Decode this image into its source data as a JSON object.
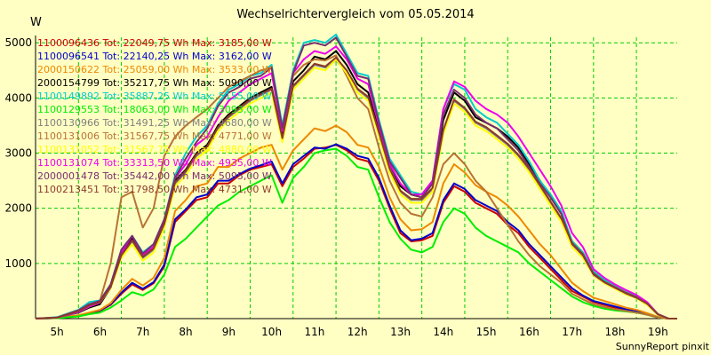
{
  "chart_data": {
    "type": "line",
    "title": "Wechselrichtervergleich vom 05.05.2014",
    "ylabel": "W",
    "xlabel": "",
    "ylim": [
      0,
      5100
    ],
    "yticks": [
      1000,
      2000,
      3000,
      4000,
      5000
    ],
    "xlim": [
      4.5,
      19.45
    ],
    "xticks": [
      "5h",
      "6h",
      "7h",
      "8h",
      "9h",
      "10h",
      "11h",
      "12h",
      "13h",
      "14h",
      "15h",
      "16h",
      "17h",
      "18h",
      "19h"
    ],
    "grid": true,
    "grid_color": "#00cc00",
    "plot_background": "#ffffc4",
    "legend_position": "top-left",
    "x": [
      4.5,
      5.0,
      5.5,
      5.75,
      6.0,
      6.25,
      6.5,
      6.75,
      7.0,
      7.25,
      7.5,
      7.75,
      8.0,
      8.25,
      8.5,
      8.75,
      9.0,
      9.25,
      9.5,
      9.75,
      10.0,
      10.25,
      10.5,
      10.75,
      11.0,
      11.25,
      11.5,
      11.75,
      12.0,
      12.25,
      12.5,
      12.75,
      13.0,
      13.25,
      13.5,
      13.75,
      14.0,
      14.25,
      14.5,
      14.75,
      15.0,
      15.25,
      15.5,
      15.75,
      16.0,
      16.25,
      16.5,
      16.75,
      17.0,
      17.25,
      17.5,
      17.75,
      18.0,
      18.25,
      18.5,
      18.75,
      19.0,
      19.25,
      19.45
    ],
    "series": [
      {
        "name": "1100096436 Tot: 22049,75 Wh Max: 3185,00 W",
        "color": "#cc0000",
        "values": [
          0,
          10,
          50,
          100,
          140,
          250,
          450,
          620,
          520,
          640,
          950,
          1750,
          1950,
          2150,
          2200,
          2450,
          2450,
          2600,
          2700,
          2750,
          2800,
          2400,
          2750,
          2900,
          3080,
          3100,
          3150,
          3050,
          2900,
          2850,
          2500,
          2000,
          1550,
          1400,
          1420,
          1500,
          2100,
          2400,
          2300,
          2100,
          2000,
          1900,
          1700,
          1550,
          1300,
          1100,
          900,
          700,
          500,
          400,
          300,
          250,
          200,
          160,
          130,
          80,
          20,
          0,
          0
        ]
      },
      {
        "name": "1100096541 Tot: 22140,25 Wh Max: 3162,00 W",
        "color": "#0000cc",
        "values": [
          0,
          10,
          55,
          105,
          150,
          260,
          470,
          650,
          540,
          660,
          980,
          1800,
          1980,
          2200,
          2250,
          2500,
          2500,
          2620,
          2720,
          2780,
          2850,
          2450,
          2800,
          2950,
          3100,
          3080,
          3160,
          3080,
          2950,
          2900,
          2550,
          2050,
          1600,
          1420,
          1450,
          1550,
          2150,
          2450,
          2350,
          2150,
          2050,
          1950,
          1750,
          1600,
          1350,
          1150,
          950,
          750,
          550,
          420,
          320,
          270,
          220,
          170,
          140,
          90,
          25,
          0,
          0
        ]
      },
      {
        "name": "2000150622 Tot: 25059,00 Wh Max: 3533,00 W",
        "color": "#ee8800",
        "values": [
          0,
          12,
          60,
          110,
          160,
          280,
          520,
          720,
          600,
          740,
          1100,
          1950,
          2150,
          2400,
          2450,
          2750,
          2750,
          2900,
          3000,
          3100,
          3150,
          2700,
          3050,
          3250,
          3450,
          3400,
          3500,
          3380,
          3150,
          3100,
          2750,
          2200,
          1800,
          1600,
          1620,
          1750,
          2450,
          2800,
          2650,
          2420,
          2300,
          2200,
          2050,
          1850,
          1600,
          1350,
          1150,
          900,
          650,
          500,
          380,
          320,
          260,
          200,
          160,
          100,
          30,
          0,
          0
        ]
      },
      {
        "name": "2000154799 Tot: 35217,75 Wh Max: 5090,00 W",
        "color": "#000000",
        "values": [
          0,
          20,
          110,
          200,
          260,
          560,
          1200,
          1450,
          1150,
          1300,
          1750,
          2500,
          2700,
          3000,
          3150,
          3500,
          3700,
          3850,
          4000,
          4100,
          4200,
          3300,
          4300,
          4500,
          4750,
          4700,
          4850,
          4600,
          4250,
          4100,
          3400,
          2800,
          2400,
          2250,
          2200,
          2450,
          3600,
          4100,
          3950,
          3650,
          3550,
          3450,
          3300,
          3100,
          2800,
          2500,
          2200,
          1900,
          1400,
          1200,
          850,
          700,
          580,
          480,
          400,
          280,
          80,
          0,
          0
        ]
      },
      {
        "name": "1100149892 Tot: 35887,25 Wh Max: 5155,00 W",
        "color": "#00cccc",
        "values": [
          0,
          25,
          160,
          300,
          330,
          620,
          1250,
          1500,
          1200,
          1350,
          1800,
          2600,
          3000,
          3300,
          3500,
          3900,
          4150,
          4250,
          4400,
          4450,
          4600,
          3500,
          4500,
          5000,
          5050,
          5000,
          5150,
          4800,
          4450,
          4400,
          3600,
          2900,
          2600,
          2300,
          2250,
          2500,
          3800,
          4250,
          4150,
          3800,
          3650,
          3550,
          3350,
          3150,
          2850,
          2500,
          2250,
          1950,
          1400,
          1200,
          850,
          700,
          580,
          480,
          400,
          280,
          80,
          0,
          0
        ]
      },
      {
        "name": "1100129553 Tot: 18063,00 Wh Max: 3093,00 W",
        "color": "#00ee00",
        "values": [
          0,
          8,
          40,
          80,
          110,
          200,
          330,
          480,
          420,
          530,
          800,
          1300,
          1450,
          1650,
          1850,
          2050,
          2150,
          2300,
          2400,
          2500,
          2600,
          2100,
          2550,
          2750,
          3000,
          3050,
          3080,
          2950,
          2750,
          2700,
          2200,
          1750,
          1450,
          1250,
          1200,
          1300,
          1750,
          2000,
          1900,
          1650,
          1500,
          1400,
          1300,
          1200,
          1000,
          850,
          700,
          550,
          400,
          300,
          230,
          180,
          150,
          130,
          110,
          70,
          20,
          0,
          0
        ]
      },
      {
        "name": "1100130966 Tot: 31491,25 Wh Max: 4680,00 W",
        "color": "#808080",
        "values": [
          0,
          18,
          140,
          240,
          300,
          580,
          1150,
          1400,
          1100,
          1250,
          1700,
          2450,
          2650,
          2950,
          3100,
          3450,
          3650,
          3800,
          3950,
          4050,
          4150,
          3250,
          4200,
          4400,
          4600,
          4550,
          4680,
          4480,
          4150,
          4000,
          3350,
          2700,
          2300,
          2150,
          2150,
          2350,
          3400,
          3950,
          3800,
          3550,
          3450,
          3300,
          3150,
          2950,
          2700,
          2400,
          2100,
          1800,
          1350,
          1150,
          800,
          650,
          550,
          450,
          380,
          260,
          70,
          0,
          0
        ]
      },
      {
        "name": "1100131006 Tot: 31567,75 Wh Max: 4771,00 W",
        "color": "#b87333",
        "values": [
          0,
          15,
          150,
          250,
          320,
          1000,
          2200,
          2300,
          1650,
          2000,
          2950,
          3300,
          3500,
          3650,
          3800,
          4000,
          4200,
          4300,
          4400,
          4500,
          4550,
          3400,
          4400,
          4600,
          4700,
          4680,
          4771,
          4400,
          4000,
          3800,
          3100,
          2500,
          2100,
          1900,
          1850,
          2200,
          2800,
          3000,
          2800,
          2500,
          2300,
          2000,
          1700,
          1400,
          1150,
          950,
          800,
          650,
          450,
          350,
          260,
          210,
          170,
          140,
          110,
          70,
          20,
          0,
          0
        ]
      },
      {
        "name": "1100131052 Tot: 31567,75 Wh Max: 4880,00 W",
        "color": "#ffff00",
        "values": [
          0,
          18,
          120,
          220,
          290,
          560,
          1100,
          1350,
          1050,
          1200,
          1650,
          2400,
          2600,
          2900,
          3050,
          3400,
          3600,
          3750,
          3900,
          4000,
          4100,
          3200,
          4150,
          4350,
          4550,
          4500,
          4700,
          4450,
          4100,
          3950,
          3300,
          2650,
          2250,
          2100,
          2100,
          2300,
          3350,
          3900,
          3750,
          3500,
          3400,
          3250,
          3100,
          2900,
          2650,
          2350,
          2050,
          1750,
          1300,
          1100,
          780,
          640,
          540,
          440,
          370,
          250,
          70,
          0,
          0
        ]
      },
      {
        "name": "1100131074 Tot: 33313,50 Wh Max: 4935,00 W",
        "color": "#ee00ee",
        "values": [
          0,
          18,
          120,
          220,
          290,
          580,
          1200,
          1500,
          1150,
          1300,
          1800,
          2550,
          2800,
          3150,
          3300,
          3650,
          3950,
          4100,
          4250,
          4350,
          4450,
          3400,
          4450,
          4700,
          4850,
          4800,
          4935,
          4700,
          4350,
          4250,
          3500,
          2800,
          2450,
          2250,
          2250,
          2500,
          3800,
          4300,
          4200,
          3950,
          3800,
          3700,
          3550,
          3300,
          3000,
          2700,
          2400,
          2050,
          1550,
          1300,
          900,
          740,
          620,
          520,
          430,
          300,
          80,
          0,
          0
        ]
      },
      {
        "name": "2000001478 Tot: 35442,00 Wh Max: 5095,00 W",
        "color": "#7a2e6e",
        "values": [
          0,
          20,
          150,
          260,
          320,
          620,
          1250,
          1500,
          1180,
          1350,
          1800,
          2550,
          2900,
          3200,
          3450,
          3850,
          4100,
          4200,
          4350,
          4400,
          4550,
          3450,
          4450,
          4950,
          5000,
          4950,
          5095,
          4750,
          4400,
          4350,
          3550,
          2850,
          2550,
          2250,
          2200,
          2450,
          3700,
          4150,
          4000,
          3700,
          3550,
          3450,
          3250,
          3050,
          2750,
          2450,
          2200,
          1900,
          1350,
          1150,
          800,
          660,
          560,
          460,
          380,
          270,
          80,
          0,
          0
        ]
      },
      {
        "name": "1100213451 Tot: 31798,50 Wh Max: 4731,00 W",
        "color": "#8b3a2a",
        "values": [
          0,
          18,
          135,
          240,
          300,
          570,
          1150,
          1420,
          1120,
          1270,
          1720,
          2470,
          2680,
          2980,
          3120,
          3470,
          3670,
          3820,
          3970,
          4070,
          4170,
          3270,
          4220,
          4420,
          4620,
          4570,
          4731,
          4500,
          4170,
          4020,
          3370,
          2720,
          2320,
          2170,
          2170,
          2370,
          3420,
          3970,
          3820,
          3570,
          3470,
          3320,
          3170,
          2970,
          2720,
          2420,
          2120,
          1820,
          1370,
          1170,
          820,
          670,
          570,
          470,
          390,
          270,
          75,
          0,
          0
        ]
      }
    ]
  },
  "footer": "SunnyReport pinxit"
}
